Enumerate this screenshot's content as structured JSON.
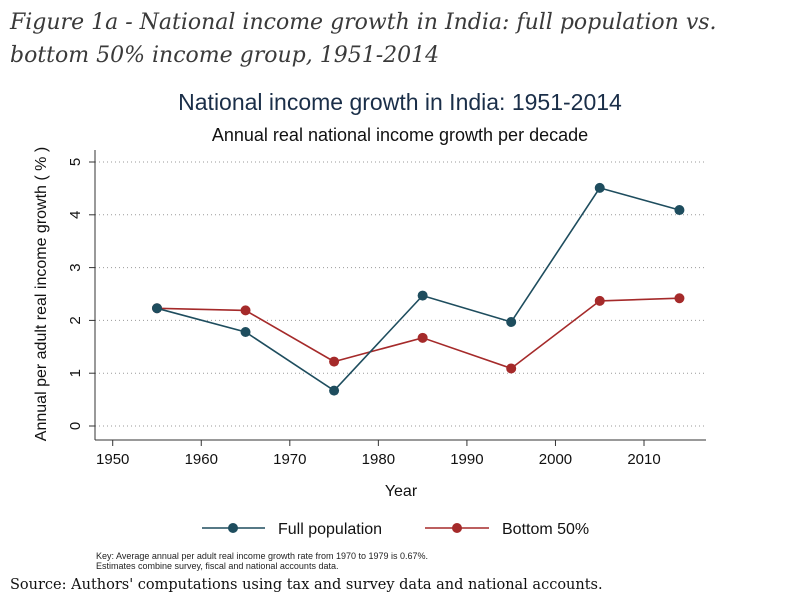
{
  "figure_caption": "Figure 1a  - National income growth in India: full population vs. bottom 50% income group, 1951-2014",
  "source_note": "Source: Authors' computations using tax and survey data and national accounts.",
  "chart_data": {
    "type": "line",
    "title": "National income growth in India: 1951-2014",
    "subtitle": "Annual real national income growth per decade",
    "xlabel": "Year",
    "ylabel": "Annual per adult real income growth ( % )",
    "xlim": [
      1948,
      2017
    ],
    "ylim": [
      0,
      5
    ],
    "x_ticks": [
      1950,
      1960,
      1970,
      1980,
      1990,
      2000,
      2010
    ],
    "y_ticks": [
      0,
      1,
      2,
      3,
      4,
      5
    ],
    "grid": "horizontal dotted",
    "legend_position": "bottom",
    "x": [
      1955,
      1965,
      1975,
      1985,
      1995,
      2005,
      2014
    ],
    "series": [
      {
        "name": "Full population",
        "color": "#1e4d5e",
        "values": [
          2.23,
          1.78,
          0.67,
          2.47,
          1.97,
          4.51,
          4.09
        ]
      },
      {
        "name": "Bottom 50%",
        "color": "#a52a2a",
        "values": [
          2.23,
          2.19,
          1.22,
          1.67,
          1.09,
          2.37,
          2.42
        ]
      }
    ],
    "notes": [
      "Key: Average annual per adult real income growth rate from 1970 to 1979 is 0.67%.",
      "Estimates combine survey, fiscal and national accounts data."
    ]
  }
}
